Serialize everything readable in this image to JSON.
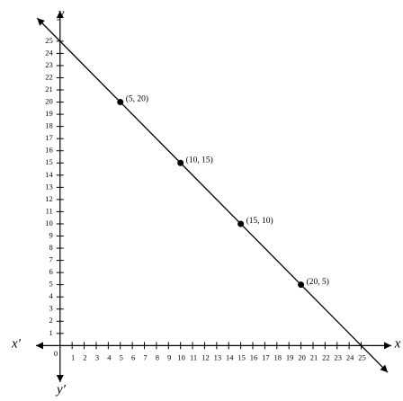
{
  "chart_data": {
    "type": "line",
    "x_label": "x",
    "x_neg_label": "x′",
    "y_label": "y",
    "y_neg_label": "y′",
    "origin_label": "0",
    "x": [
      5,
      10,
      15,
      20
    ],
    "series": [
      {
        "values": [
          20,
          15,
          10,
          5
        ],
        "value_labels": [
          "(5, 20)",
          "(10, 15)",
          "(15, 10)",
          "(20, 5)"
        ],
        "color": "#000000"
      }
    ],
    "xlim": [
      -2,
      27.5
    ],
    "ylim": [
      -3,
      27.5
    ],
    "xticks": [
      1,
      2,
      3,
      4,
      5,
      6,
      7,
      8,
      9,
      10,
      11,
      12,
      13,
      14,
      15,
      16,
      17,
      18,
      19,
      20,
      21,
      22,
      23,
      24,
      25
    ],
    "yticks": [
      1,
      2,
      3,
      4,
      5,
      6,
      7,
      8,
      9,
      10,
      11,
      12,
      13,
      14,
      15,
      16,
      17,
      18,
      19,
      20,
      21,
      22,
      23,
      24,
      25
    ]
  }
}
